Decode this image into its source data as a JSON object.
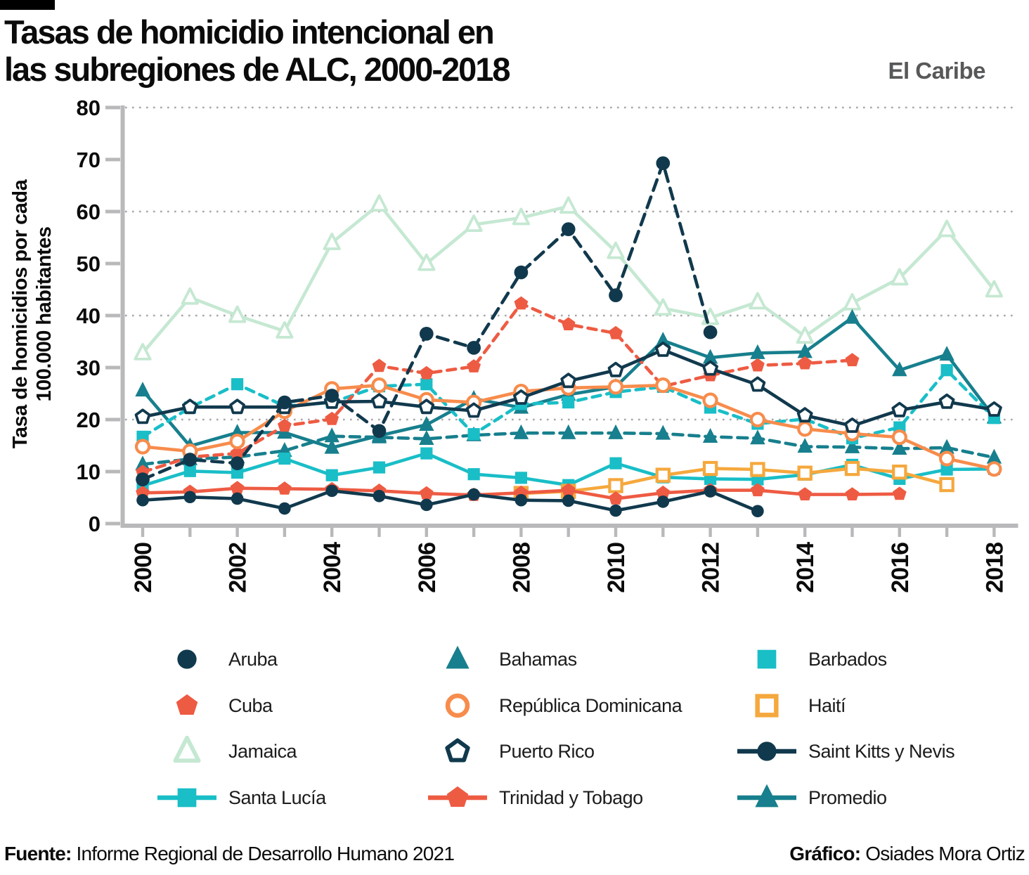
{
  "header": {
    "title_line1": "Tasas de homicidio intencional en",
    "title_line2": "las subregiones de ALC, 2000-2018",
    "region_label": "El Caribe"
  },
  "chart_data": {
    "type": "line",
    "title": "Tasas de homicidio intencional en las subregiones de ALC, 2000-2018",
    "subtitle": "El Caribe",
    "ylabel_line1": "Tasa de homicidios por cada",
    "ylabel_line2": "100.000 habitantes",
    "ylim": [
      0,
      80
    ],
    "y_ticks": [
      0,
      10,
      20,
      30,
      40,
      50,
      60,
      70,
      80
    ],
    "gridline_values": [
      20,
      40,
      60,
      80
    ],
    "years": [
      2000,
      2001,
      2002,
      2003,
      2004,
      2005,
      2006,
      2007,
      2008,
      2009,
      2010,
      2011,
      2012,
      2013,
      2014,
      2015,
      2016,
      2017,
      2018
    ],
    "x_label_years": [
      2000,
      2002,
      2004,
      2006,
      2008,
      2010,
      2012,
      2014,
      2016,
      2018
    ],
    "axis_color": "#b9b9bc",
    "grid_color": "#a8a8ab",
    "series": [
      {
        "name": "Jamaica",
        "color": "#c5e8d2",
        "marker": "triangle",
        "marker_fill": "open",
        "line_style": "solid",
        "start_year": 2000,
        "values": [
          32.8,
          43.5,
          40,
          37,
          54,
          61.4,
          50,
          57.5,
          58.8,
          61,
          52.3,
          41.4,
          39.6,
          42.6,
          36,
          42.4,
          47.2,
          56.5,
          44.9
        ]
      },
      {
        "name": "Promedio",
        "color": "#177f8d",
        "marker": "triangle",
        "marker_fill": "solid",
        "line_style": "dashed",
        "start_year": 2000,
        "values": [
          11.4,
          12.4,
          12.8,
          14,
          16.8,
          16.6,
          16.3,
          17,
          17.4,
          17.4,
          17.4,
          17.3,
          16.7,
          16.4,
          14.8,
          14.7,
          14.4,
          14.6,
          12.7
        ]
      },
      {
        "name": "Bahamas",
        "color": "#177f8d",
        "marker": "triangle",
        "marker_fill": "solid",
        "line_style": "solid",
        "start_year": 2000,
        "values": [
          25.6,
          14.9,
          17.5,
          17.5,
          14.6,
          16.9,
          19,
          24,
          22.3,
          24.8,
          26.3,
          35.2,
          31.9,
          32.8,
          33,
          39.6,
          29.5,
          32.5,
          20.4
        ]
      },
      {
        "name": "Santa Lucía",
        "color": "#19bec7",
        "marker": "square",
        "marker_fill": "solid",
        "line_style": "dashed",
        "start_year": 2000,
        "values": [
          16.7,
          22.3,
          26.8,
          22.6,
          23.3,
          26.4,
          26.8,
          17.2,
          23,
          23.3,
          25.3,
          26.3,
          22.3,
          19.2,
          20.1,
          16.4,
          18.5,
          29.5,
          20.3
        ]
      },
      {
        "name": "Barbados",
        "color": "#19bec7",
        "marker": "square",
        "marker_fill": "solid",
        "line_style": "solid",
        "start_year": 2000,
        "values": [
          7.3,
          10.1,
          9.8,
          12.5,
          9.3,
          10.8,
          13.5,
          9.5,
          8.8,
          7.4,
          11.6,
          8.9,
          8.6,
          8.5,
          9.4,
          11.3,
          8.6,
          10.4,
          10.5
        ]
      },
      {
        "name": "Haití",
        "color": "#f5a83d",
        "marker": "square",
        "marker_fill": "open",
        "line_style": "solid",
        "start_year": 2008,
        "values": [
          5.8,
          6.2,
          7.3,
          9.3,
          10.6,
          10.4,
          9.7,
          10.6,
          9.9,
          7.5
        ]
      },
      {
        "name": "Cuba",
        "color": "#ee5b43",
        "marker": "pentagon",
        "marker_fill": "solid",
        "line_style": "solid",
        "start_year": 2000,
        "values": [
          5.9,
          6.1,
          6.8,
          6.7,
          6.6,
          6.3,
          5.8,
          5.5,
          5.9,
          6.4,
          4.8,
          5.9,
          6.4,
          6.4,
          5.6,
          5.6,
          5.7
        ]
      },
      {
        "name": "Trinidad y Tobago",
        "color": "#ee5b43",
        "marker": "pentagon",
        "marker_fill": "solid",
        "line_style": "dashed",
        "start_year": 2000,
        "values": [
          9.9,
          12.8,
          13.5,
          18.8,
          20.1,
          30.3,
          28.9,
          30.2,
          42.3,
          38.3,
          36.6,
          26.4,
          28.5,
          30.4,
          30.8,
          31.4
        ]
      },
      {
        "name": "República Dominicana",
        "color": "#f78c4c",
        "marker": "circle",
        "marker_fill": "open",
        "line_style": "solid",
        "start_year": 2000,
        "values": [
          14.8,
          13.9,
          15.8,
          21.6,
          25.9,
          26.6,
          23.8,
          23.3,
          25.4,
          26.1,
          26.3,
          26.6,
          23.7,
          20,
          18.2,
          17.3,
          16.6,
          12.5,
          10.5
        ]
      },
      {
        "name": "Aruba",
        "color": "#11394d",
        "marker": "circle",
        "marker_fill": "solid",
        "line_style": "solid",
        "start_year": 2000,
        "values": [
          4.5,
          5.1,
          4.8,
          2.9,
          6.3,
          5.3,
          3.6,
          5.6,
          4.5,
          4.4,
          2.5,
          4.2,
          6.2,
          2.4
        ]
      },
      {
        "name": "Puerto Rico",
        "color": "#11394d",
        "marker": "pentagon",
        "marker_fill": "open",
        "line_style": "solid",
        "start_year": 2000,
        "values": [
          20.5,
          22.4,
          22.4,
          22.4,
          23.4,
          23.5,
          22.4,
          21.7,
          24.2,
          27.4,
          29.5,
          33.4,
          29.8,
          26.7,
          20.8,
          18.8,
          21.8,
          23.4,
          21.9
        ]
      },
      {
        "name": "Saint Kitts y Nevis",
        "color": "#11394d",
        "marker": "circle",
        "marker_fill": "solid",
        "line_style": "dashed",
        "start_year": 2000,
        "values": [
          8.5,
          12.3,
          11.6,
          23.3,
          24.6,
          17.8,
          36.5,
          33.8,
          48.3,
          56.6,
          43.9,
          69.3,
          36.8
        ]
      }
    ]
  },
  "legend": {
    "items": [
      {
        "label": "Aruba",
        "series": "Aruba",
        "has_line": false,
        "row": 0,
        "col": 0
      },
      {
        "label": "Bahamas",
        "series": "Bahamas",
        "has_line": false,
        "row": 0,
        "col": 1
      },
      {
        "label": "Barbados",
        "series": "Barbados",
        "has_line": false,
        "row": 0,
        "col": 2
      },
      {
        "label": "Cuba",
        "series": "Cuba",
        "has_line": false,
        "row": 1,
        "col": 0
      },
      {
        "label": "República Dominicana",
        "series": "República Dominicana",
        "has_line": false,
        "row": 1,
        "col": 1
      },
      {
        "label": "Haití",
        "series": "Haití",
        "has_line": false,
        "row": 1,
        "col": 2
      },
      {
        "label": "Jamaica",
        "series": "Jamaica",
        "has_line": false,
        "row": 2,
        "col": 0
      },
      {
        "label": "Puerto Rico",
        "series": "Puerto Rico",
        "has_line": false,
        "row": 2,
        "col": 1
      },
      {
        "label": "Saint Kitts y Nevis",
        "series": "Saint Kitts y Nevis",
        "has_line": true,
        "row": 2,
        "col": 2
      },
      {
        "label": "Santa Lucía",
        "series": "Santa Lucía",
        "has_line": true,
        "row": 3,
        "col": 0
      },
      {
        "label": "Trinidad y Tobago",
        "series": "Trinidad y Tobago",
        "has_line": true,
        "row": 3,
        "col": 1
      },
      {
        "label": "Promedio",
        "series": "Promedio",
        "has_line": true,
        "row": 3,
        "col": 2
      }
    ]
  },
  "footer": {
    "source_label": "Fuente:",
    "source_text": " Informe Regional de Desarrollo Humano 2021",
    "credit_label": "Gráfico:",
    "credit_text": " Osiades Mora Ortiz"
  }
}
